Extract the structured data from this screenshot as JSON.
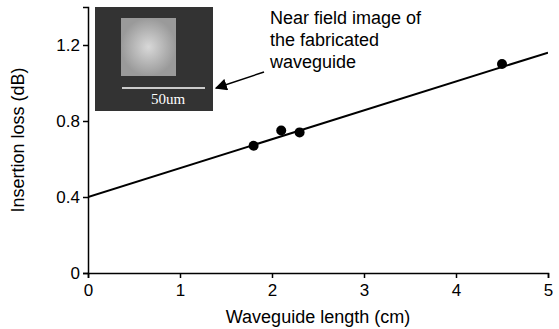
{
  "chart_data": {
    "type": "scatter",
    "x_label": "Waveguide length (cm)",
    "y_label": "Insertion loss (dB)",
    "xlim": [
      0,
      5
    ],
    "xticks": [
      0,
      1,
      2,
      3,
      4,
      5
    ],
    "ylim": [
      0,
      1.4
    ],
    "yticks": [
      0,
      0.4,
      0.8,
      1.2
    ],
    "grid": false,
    "series": [
      {
        "type": "scatter",
        "x": [
          1.8,
          2.1,
          2.3,
          4.5
        ],
        "values": [
          0.67,
          0.75,
          0.74,
          1.1
        ],
        "color": "#000000",
        "marker": "circle"
      },
      {
        "type": "line",
        "x": [
          0,
          5
        ],
        "values": [
          0.4,
          1.16
        ],
        "color": "#000000",
        "line_style": "solid"
      }
    ],
    "annotations": [
      "Near field image of",
      "the fabricated",
      "waveguide"
    ],
    "inset_label": "50um"
  }
}
